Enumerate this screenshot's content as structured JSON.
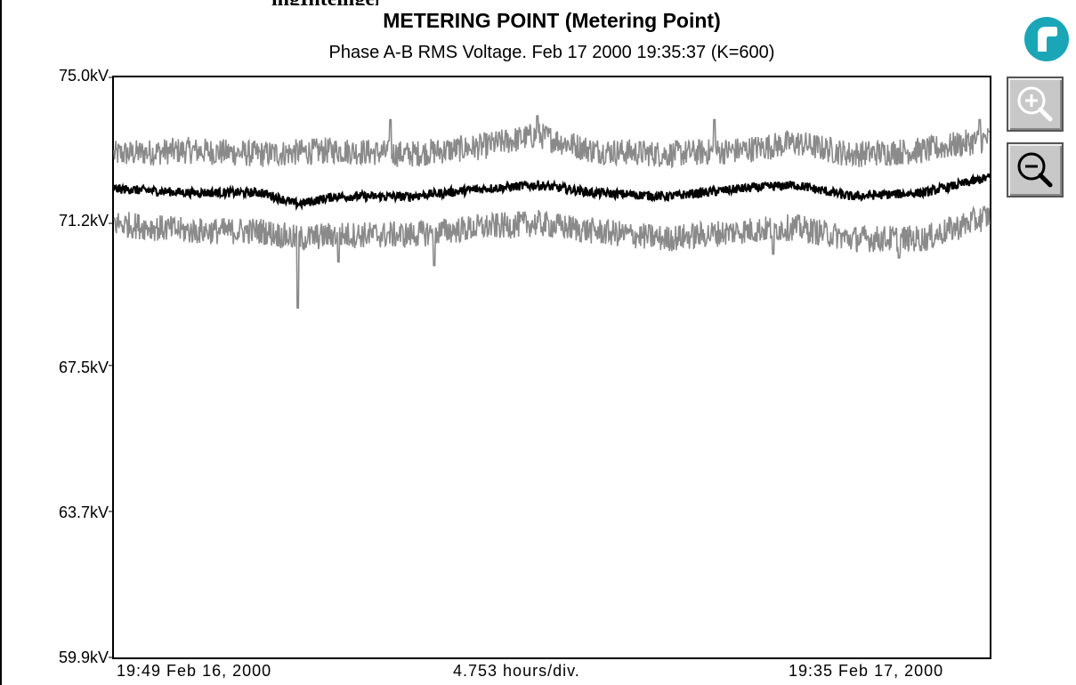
{
  "header": {
    "cutoff_title_text": "ingIntelligentSy",
    "title": "METERING POINT (Metering Point)",
    "subtitle": "Phase A-B RMS Voltage. Feb 17 2000 19:35:37 (K=600)"
  },
  "colors": {
    "envelope": "#8a8a8a",
    "average": "#000000",
    "logo": "#1aa6b7"
  },
  "toolbar": {
    "zoom_in_icon": "zoom-in-icon",
    "zoom_out_icon": "zoom-out-icon"
  },
  "chart_data": {
    "type": "line",
    "title": "METERING POINT (Metering Point)",
    "subtitle": "Phase A-B RMS Voltage. Feb 17 2000 19:35:37 (K=600)",
    "xlabel": "",
    "ylabel": "",
    "ylim": [
      59.9,
      75.0
    ],
    "yticks": [
      "75.0kV",
      "71.2kV",
      "67.5kV",
      "63.7kV",
      "59.9kV"
    ],
    "ytick_values": [
      75.0,
      71.2,
      67.5,
      63.7,
      59.9
    ],
    "x_range_hours": [
      0,
      23.77
    ],
    "x_start_label": "19:49 Feb 16, 2000",
    "x_division_label": "4.753 hours/div.",
    "x_end_label": "19:35 Feb 17, 2000",
    "grid": false,
    "series": [
      {
        "role": "max",
        "color": "#8a8a8a",
        "base": [
          [
            0,
            73.0
          ],
          [
            2.0,
            73.1
          ],
          [
            4.0,
            73.0
          ],
          [
            6.0,
            73.1
          ],
          [
            8.0,
            73.0
          ],
          [
            10.0,
            73.2
          ],
          [
            11.5,
            73.5
          ],
          [
            13.0,
            73.1
          ],
          [
            15.0,
            73.0
          ],
          [
            17.0,
            73.1
          ],
          [
            18.5,
            73.3
          ],
          [
            20.0,
            73.0
          ],
          [
            22.0,
            73.1
          ],
          [
            23.77,
            73.4
          ]
        ],
        "noise": 0.35,
        "spikes": [
          [
            11.5,
            74.0
          ],
          [
            7.5,
            73.9
          ],
          [
            16.3,
            73.9
          ],
          [
            23.5,
            73.9
          ]
        ]
      },
      {
        "role": "average",
        "color": "#000000",
        "base": [
          [
            0,
            72.1
          ],
          [
            2.0,
            72.0
          ],
          [
            4.0,
            72.0
          ],
          [
            5.0,
            71.7
          ],
          [
            6.0,
            71.9
          ],
          [
            8.0,
            71.9
          ],
          [
            10.0,
            72.1
          ],
          [
            11.5,
            72.2
          ],
          [
            13.0,
            72.0
          ],
          [
            15.0,
            71.9
          ],
          [
            17.0,
            72.1
          ],
          [
            18.5,
            72.2
          ],
          [
            20.0,
            71.9
          ],
          [
            22.0,
            72.0
          ],
          [
            23.77,
            72.4
          ]
        ],
        "noise": 0.12,
        "spikes": []
      },
      {
        "role": "min",
        "color": "#8a8a8a",
        "base": [
          [
            0,
            71.2
          ],
          [
            2.0,
            71.0
          ],
          [
            4.0,
            71.0
          ],
          [
            5.0,
            70.8
          ],
          [
            6.0,
            70.9
          ],
          [
            8.0,
            70.9
          ],
          [
            10.0,
            71.1
          ],
          [
            11.5,
            71.2
          ],
          [
            13.0,
            71.0
          ],
          [
            15.0,
            70.8
          ],
          [
            17.0,
            71.0
          ],
          [
            18.5,
            71.1
          ],
          [
            20.0,
            70.8
          ],
          [
            22.0,
            70.8
          ],
          [
            23.77,
            71.4
          ]
        ],
        "noise": 0.35,
        "spikes": [
          [
            5.0,
            69.0
          ],
          [
            6.1,
            70.2
          ],
          [
            8.7,
            70.1
          ],
          [
            17.9,
            70.4
          ],
          [
            21.3,
            70.3
          ]
        ]
      }
    ]
  }
}
